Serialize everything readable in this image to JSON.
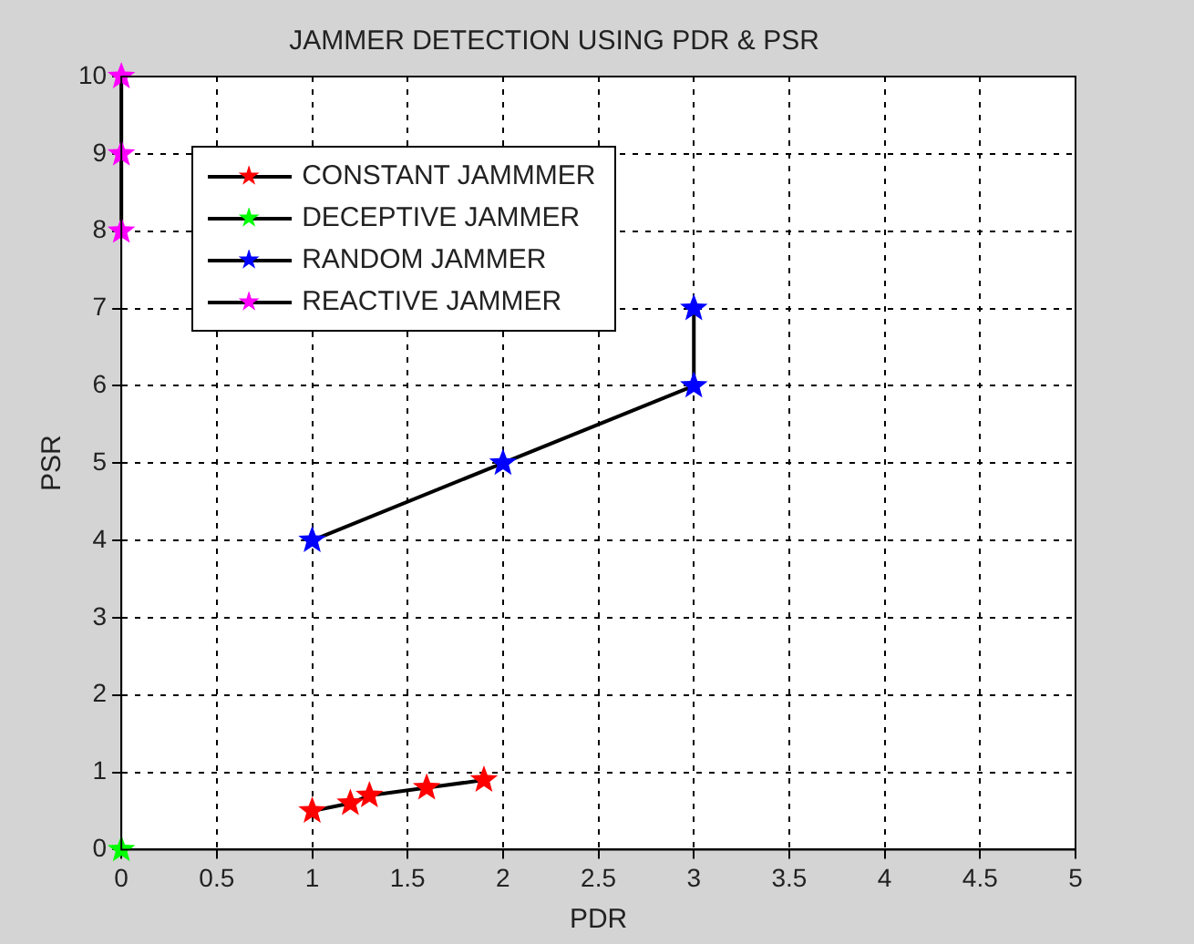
{
  "chart_data": {
    "type": "line",
    "title": "JAMMER DETECTION USING PDR & PSR",
    "xlabel": "PDR",
    "ylabel": "PSR",
    "xlim": [
      0,
      5
    ],
    "xticks": [
      0,
      0.5,
      1,
      1.5,
      2,
      2.5,
      3,
      3.5,
      4,
      4.5,
      5
    ],
    "ylim": [
      0,
      10
    ],
    "yticks": [
      0,
      1,
      2,
      3,
      4,
      5,
      6,
      7,
      8,
      9,
      10
    ],
    "grid": true,
    "legend": "top left",
    "marker": "star",
    "line_style": "solid",
    "series": [
      {
        "name": "CONSTANT JAMMMER",
        "color": "#ff0000",
        "x": [
          1,
          1.2,
          1.3,
          1.6,
          1.9
        ],
        "values": [
          0.5,
          0.6,
          0.7,
          0.8,
          0.9
        ]
      },
      {
        "name": "DECEPTIVE JAMMER",
        "color": "#00ff00",
        "x": [
          0
        ],
        "values": [
          0
        ]
      },
      {
        "name": "RANDOM JAMMER",
        "color": "#0000ff",
        "x": [
          1,
          2,
          3,
          3
        ],
        "values": [
          4,
          5,
          6,
          7
        ]
      },
      {
        "name": "REACTIVE JAMMER",
        "color": "#ff00ff",
        "x": [
          0,
          0,
          0
        ],
        "values": [
          8,
          9,
          10
        ]
      }
    ]
  }
}
